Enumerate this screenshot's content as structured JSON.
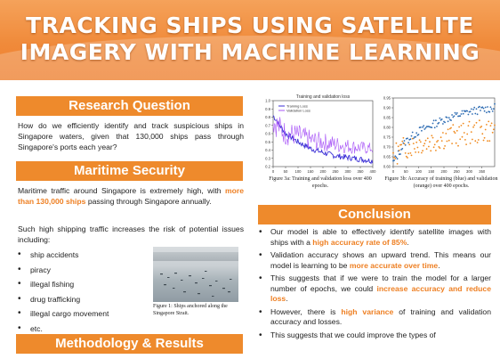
{
  "header": {
    "title_line1": "TRACKING SHIPS USING SATELLITE",
    "title_line2": "IMAGERY WITH MACHINE LEARNING"
  },
  "research": {
    "heading": "Research Question",
    "text": "How do we efficiently identify and track suspicious ships in Singapore waters, given that 130,000 ships pass through Singapore's ports each year?"
  },
  "maritime": {
    "heading": "Maritime Security",
    "p1_before": "Maritime traffic around Singapore is extremely high, with ",
    "p1_highlight": "more than 130,000 ships",
    "p1_after": " passing through Singapore annually.",
    "p2": "Such high shipping traffic increases the risk of potential issues including:",
    "issues": [
      "ship accidents",
      "piracy",
      "illegal fishing",
      "drug trafficking",
      "illegal cargo movement",
      "etc."
    ],
    "figure_caption": "Figure 1: Ships anchored along the Singapore Strait."
  },
  "methodology": {
    "heading": "Methodology & Results"
  },
  "figures": {
    "fig3a_caption": "Figure 3a: Training and validation loss over 400 epochs.",
    "fig3b_caption": "Figure 3b: Accuracy of training (blue) and validation (orange) over 400 epochs."
  },
  "conclusion": {
    "heading": "Conclusion",
    "items": [
      {
        "before": "Our model is able to effectively identify satellite images with ships with a ",
        "highlight": "high accuracy rate of 85%",
        "after": "."
      },
      {
        "before": "Validation accuracy shows an upward trend. This means our model is learning to be ",
        "highlight": "more accurate over time",
        "after": "."
      },
      {
        "before": "This suggests that if we were to train the model for a larger number of epochs, we could ",
        "highlight": "increase accuracy and reduce loss",
        "after": "."
      },
      {
        "before": "However, there is ",
        "highlight": "high variance",
        "after": " of training and validation accuracy and losses."
      },
      {
        "before": "This suggests that we could improve the types of",
        "highlight": "",
        "after": ""
      }
    ]
  },
  "colors": {
    "accent": "#ee8a2c",
    "highlight": "#ee7f22",
    "train": "#3b2fd6",
    "validation": "#a855f7",
    "train_acc": "#2f6db3",
    "val_acc": "#f08a1e"
  },
  "chart_data": [
    {
      "type": "line",
      "title": "Training and validation loss",
      "xlabel": "",
      "ylabel": "",
      "xlim": [
        0,
        400
      ],
      "ylim": [
        0.2,
        1.0
      ],
      "x_ticks": [
        0,
        50,
        100,
        150,
        200,
        250,
        300,
        350,
        400
      ],
      "y_ticks": [
        0.2,
        0.3,
        0.4,
        0.5,
        0.6,
        0.7,
        0.8,
        0.9,
        1.0
      ],
      "legend": "top-right",
      "series": [
        {
          "name": "Training Loss",
          "x": [
            0,
            50,
            100,
            150,
            200,
            250,
            300,
            350,
            400
          ],
          "values": [
            0.82,
            0.6,
            0.5,
            0.42,
            0.37,
            0.33,
            0.31,
            0.29,
            0.27
          ]
        },
        {
          "name": "Validation Loss",
          "x": [
            0,
            50,
            100,
            150,
            200,
            250,
            300,
            350,
            400
          ],
          "values": [
            0.75,
            0.6,
            0.58,
            0.52,
            0.5,
            0.47,
            0.45,
            0.43,
            0.42
          ]
        }
      ]
    },
    {
      "type": "scatter",
      "title": "",
      "xlabel": "",
      "ylabel": "",
      "xlim": [
        0,
        400
      ],
      "ylim": [
        0.6,
        0.95
      ],
      "x_ticks": [
        0,
        50,
        100,
        150,
        200,
        250,
        300,
        350
      ],
      "y_ticks": [
        0.6,
        0.65,
        0.7,
        0.75,
        0.8,
        0.85,
        0.9,
        0.95
      ],
      "series": [
        {
          "name": "",
          "x": [
            0,
            50,
            100,
            150,
            200,
            250,
            300,
            350,
            400
          ],
          "values": [
            0.62,
            0.73,
            0.78,
            0.81,
            0.84,
            0.86,
            0.88,
            0.89,
            0.9
          ]
        },
        {
          "name": "",
          "x": [
            0,
            50,
            100,
            150,
            200,
            250,
            300,
            350,
            400
          ],
          "values": [
            0.66,
            0.7,
            0.72,
            0.73,
            0.75,
            0.76,
            0.77,
            0.78,
            0.79
          ]
        }
      ]
    }
  ]
}
